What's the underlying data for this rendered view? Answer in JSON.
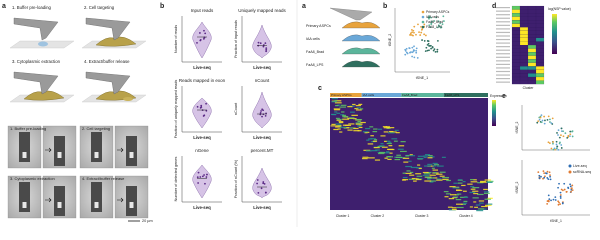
{
  "left_figure": {
    "panel_a": {
      "label": "a",
      "steps": [
        "1. Buffer pre-loading",
        "2. Cell targeting",
        "3. Cytoplasmic extraction",
        "4. Extract/buffer release"
      ],
      "micrograph_steps": [
        "1. Buffer pre-loading",
        "2. Cell targeting",
        "3. Cytoplasmic extraction",
        "4. Extract/buffer release"
      ],
      "scale_bar": "20 µm"
    },
    "panel_b": {
      "label": "b",
      "plots": [
        {
          "title": "Input reads",
          "y_label": "Number of reads",
          "x_label": "Live-seq"
        },
        {
          "title": "Uniquely mapped reads",
          "y_label": "Fraction of input reads",
          "x_label": "Live-seq"
        },
        {
          "title": "Reads mapped in exon",
          "y_label": "Fraction of uniquely mapped reads",
          "x_label": "Live-seq"
        },
        {
          "title": "nCount",
          "y_label": "nCount",
          "x_label": "Live-seq"
        },
        {
          "title": "nGene",
          "y_label": "Number of detected genes",
          "x_label": "Live-seq"
        },
        {
          "title": "percent.MT",
          "y_label": "Fraction of nCount (%)",
          "x_label": "Live-seq"
        }
      ]
    }
  },
  "right_figure": {
    "panel_a": {
      "label": "a",
      "groups": [
        "Primary ASPCs",
        "IAA cells",
        "FaA8_Brad",
        "FaA8_LPS"
      ]
    },
    "panel_b": {
      "label": "b",
      "legend": [
        "Primary ASPCs",
        "IAA cells",
        "FaA8_Brad",
        "FaA8_LPS"
      ],
      "x_label": "tSNE_1",
      "y_label": "tSNE_2"
    },
    "panel_c": {
      "label": "c",
      "column_groups": [
        "Primary ASPCs",
        "IAA cells",
        "FaA8_Brad",
        "FaA8_LPS"
      ],
      "clusters": [
        "Cluster 1",
        "Cluster 2",
        "Cluster 3",
        "Cluster 4"
      ],
      "legend_title": "Expression"
    },
    "panel_d": {
      "label": "d",
      "legend_title": "log(NSP value)",
      "x_label": "Cluster"
    },
    "panel_e": {
      "label": "e",
      "legend": [
        "Live-seq",
        "scRNA-seq"
      ],
      "x_label": "tSNE_1",
      "y_label": "tSNE_2"
    }
  }
}
